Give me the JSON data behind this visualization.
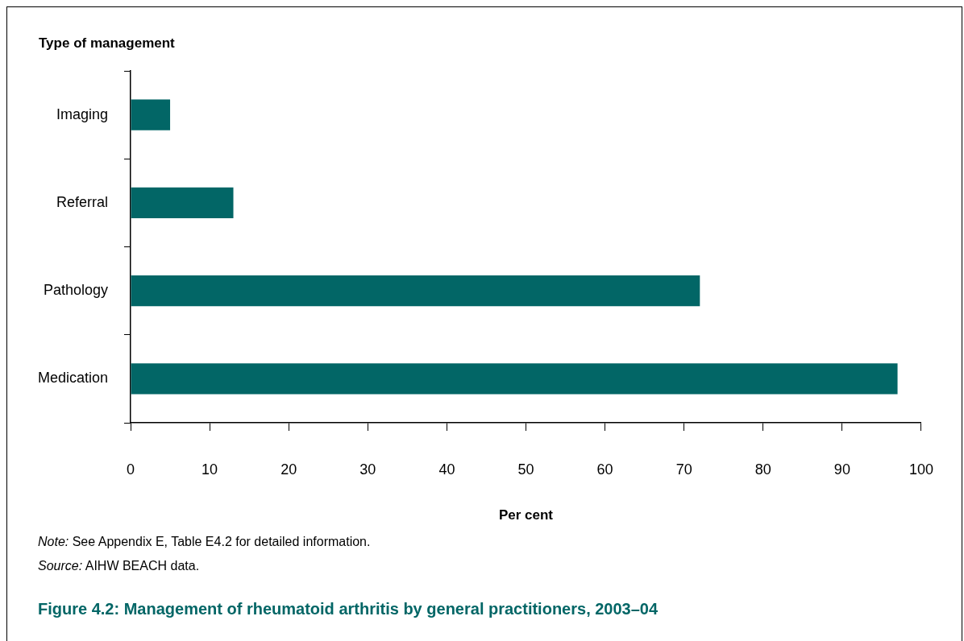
{
  "chart_data": {
    "type": "bar",
    "orientation": "horizontal",
    "title": "Figure 4.2: Management of rheumatoid arthritis by general practitioners, 2003–04",
    "ylabel": "Type of management",
    "xlabel": "Per cent",
    "categories": [
      "Imaging",
      "Referral",
      "Pathology",
      "Medication"
    ],
    "values": [
      5,
      13,
      72,
      97
    ],
    "color": "#026666",
    "xlim": [
      0,
      100
    ],
    "xticks": [
      0,
      10,
      20,
      30,
      40,
      50,
      60,
      70,
      80,
      90,
      100
    ],
    "grid": false,
    "legend": false,
    "annotations": [
      "Note: See Appendix E, Table E4.2 for detailed information.",
      "Source: AIHW BEACH data."
    ]
  }
}
